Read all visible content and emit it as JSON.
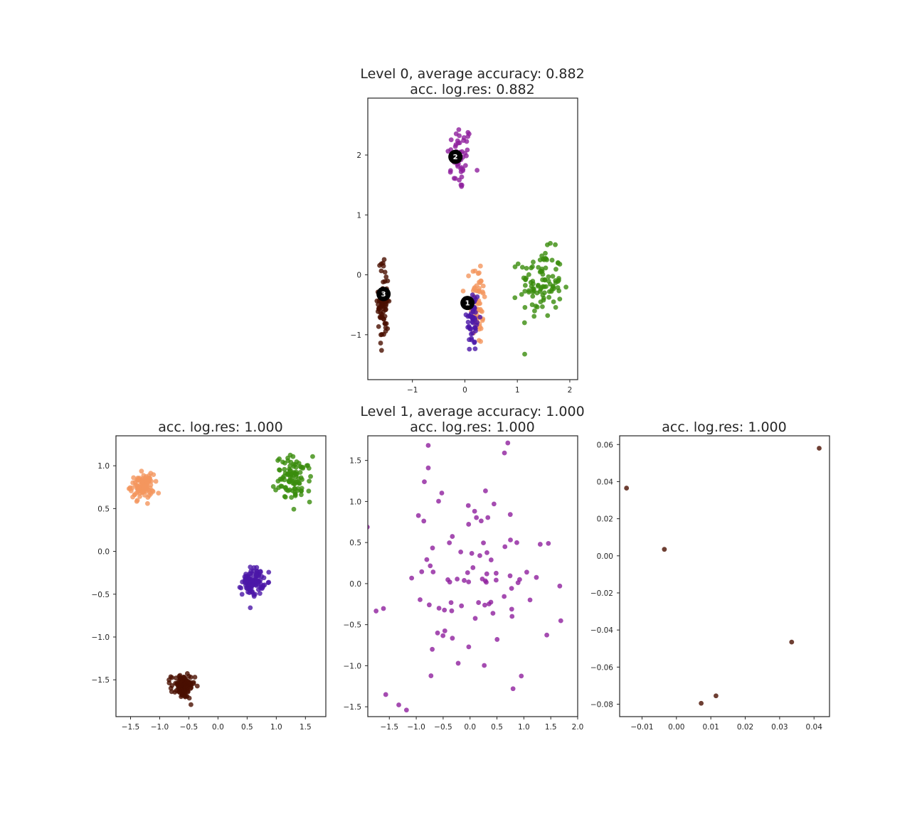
{
  "figure": {
    "level0_title": "Level 0, average accuracy: 0.882",
    "level1_title": "Level 1, average accuracy: 1.000"
  },
  "colors": {
    "orange": "#f4965e",
    "green": "#3a8c0c",
    "purple": "#8e1f9e",
    "indigo": "#4b17a8",
    "brown": "#4a0f00",
    "center": "#000000"
  },
  "chart_data": [
    {
      "type": "scatter",
      "title": "acc. log.res: 0.882",
      "xlim": [
        -1.85,
        2.15
      ],
      "ylim": [
        -1.75,
        2.95
      ],
      "xticks": [
        -1,
        0,
        1,
        2
      ],
      "yticks": [
        -1,
        0,
        1,
        2
      ],
      "grid": false,
      "clusters": [
        {
          "color": "purple",
          "center": [
            -0.1,
            1.95
          ],
          "spread": [
            0.12,
            0.28
          ],
          "n": 50
        },
        {
          "color": "orange",
          "center": [
            0.25,
            -0.45
          ],
          "spread": [
            0.07,
            0.38
          ],
          "n": 60
        },
        {
          "color": "indigo",
          "center": [
            0.15,
            -0.75
          ],
          "spread": [
            0.06,
            0.28
          ],
          "n": 50
        },
        {
          "color": "green",
          "center": [
            1.45,
            -0.15
          ],
          "spread": [
            0.2,
            0.28
          ],
          "n": 100
        },
        {
          "color": "brown",
          "center": [
            -1.55,
            -0.45
          ],
          "spread": [
            0.05,
            0.35
          ],
          "n": 80
        }
      ],
      "centers": [
        {
          "label": "1",
          "x": 0.05,
          "y": -0.47
        },
        {
          "label": "2",
          "x": -0.18,
          "y": 1.97
        },
        {
          "label": "3",
          "x": -1.55,
          "y": -0.32
        }
      ]
    },
    {
      "type": "scatter",
      "title": "acc. log.res: 1.000",
      "xlim": [
        -1.75,
        1.85
      ],
      "ylim": [
        -1.93,
        1.35
      ],
      "xticks": [
        -1.5,
        -1.0,
        -0.5,
        0.0,
        0.5,
        1.0,
        1.5
      ],
      "xtick_labels": [
        "−1.5",
        "−1.0",
        "−0.5",
        "0.0",
        "0.5",
        "1.0",
        "1.5"
      ],
      "yticks": [
        -1.5,
        -1.0,
        -0.5,
        0.0,
        0.5,
        1.0
      ],
      "ytick_labels": [
        "−1.5",
        "−1.0",
        "−0.5",
        "0.0",
        "0.5",
        "1.0"
      ],
      "grid": false,
      "clusters": [
        {
          "color": "orange",
          "center": [
            -1.3,
            0.76
          ],
          "spread": [
            0.1,
            0.07
          ],
          "n": 100
        },
        {
          "color": "green",
          "center": [
            1.3,
            0.85
          ],
          "spread": [
            0.15,
            0.13
          ],
          "n": 100
        },
        {
          "color": "indigo",
          "center": [
            0.6,
            -0.35
          ],
          "spread": [
            0.09,
            0.08
          ],
          "n": 100
        },
        {
          "color": "brown",
          "center": [
            -0.6,
            -1.58
          ],
          "spread": [
            0.1,
            0.07
          ],
          "n": 100
        }
      ]
    },
    {
      "type": "scatter",
      "title": "acc. log.res: 1.000",
      "xlim": [
        -1.9,
        2.0
      ],
      "ylim": [
        -1.62,
        1.8
      ],
      "xticks": [
        -1.5,
        -1.0,
        -0.5,
        0.0,
        0.5,
        1.0,
        1.5,
        2.0
      ],
      "xtick_labels": [
        "−1.5",
        "−1.0",
        "−0.5",
        "0.0",
        "0.5",
        "1.0",
        "1.5",
        "2.0"
      ],
      "yticks": [
        -1.5,
        -1.0,
        -0.5,
        0.0,
        0.5,
        1.0,
        1.5
      ],
      "ytick_labels": [
        "−1.5",
        "−1.0",
        "−0.5",
        "0.0",
        "0.5",
        "1.0",
        "1.5"
      ],
      "grid": false,
      "clusters": [
        {
          "color": "purple",
          "center": [
            0.0,
            0.0
          ],
          "spread": [
            0.75,
            0.7
          ],
          "n": 95
        }
      ]
    },
    {
      "type": "scatter",
      "title": "acc. log.res: 1.000",
      "xlim": [
        -0.0165,
        0.0445
      ],
      "ylim": [
        -0.0867,
        0.0647
      ],
      "xticks": [
        -0.01,
        0.0,
        0.01,
        0.02,
        0.03,
        0.04
      ],
      "xtick_labels": [
        "−0.01",
        "0.00",
        "0.01",
        "0.02",
        "0.03",
        "0.04"
      ],
      "yticks": [
        -0.08,
        -0.06,
        -0.04,
        -0.02,
        0.0,
        0.02,
        0.04,
        0.06
      ],
      "ytick_labels": [
        "−0.08",
        "−0.06",
        "−0.04",
        "−0.02",
        "0.00",
        "0.02",
        "0.04",
        "0.06"
      ],
      "grid": false,
      "points": [
        {
          "x": -0.0145,
          "y": 0.0365,
          "color": "brown"
        },
        {
          "x": -0.0035,
          "y": 0.0035,
          "color": "brown"
        },
        {
          "x": 0.0415,
          "y": 0.058,
          "color": "brown"
        },
        {
          "x": 0.0335,
          "y": -0.0465,
          "color": "brown"
        },
        {
          "x": 0.0115,
          "y": -0.0755,
          "color": "brown"
        },
        {
          "x": 0.0072,
          "y": -0.0795,
          "color": "brown"
        }
      ]
    }
  ]
}
